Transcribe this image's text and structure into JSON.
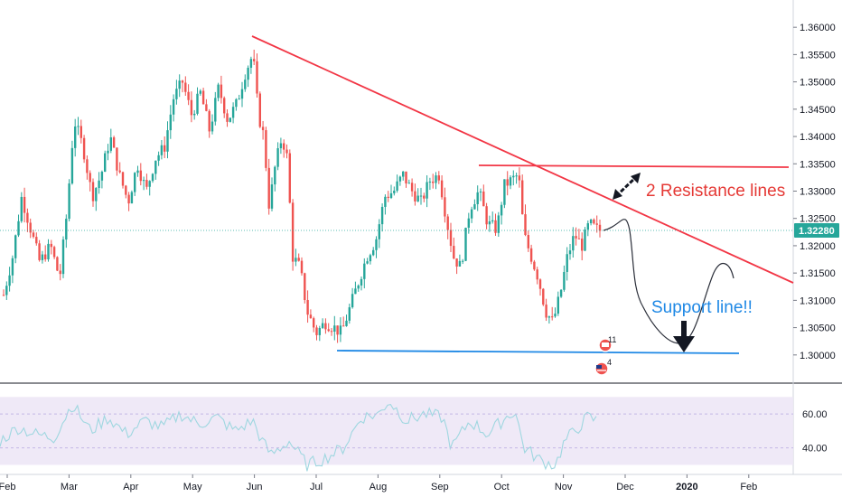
{
  "chart_data": {
    "type": "candlestick",
    "symbol_price_axis": {
      "ticks": [
        "1.36000",
        "1.35500",
        "1.35000",
        "1.34500",
        "1.34000",
        "1.33500",
        "1.33000",
        "1.32500",
        "1.32000",
        "1.31500",
        "1.31000",
        "1.30500",
        "1.30000"
      ],
      "range": [
        1.2955,
        1.364
      ],
      "last_price": "1.32280",
      "last_price_value": 1.3228
    },
    "time_axis": {
      "ticks": [
        "Feb",
        "Mar",
        "Apr",
        "May",
        "Jun",
        "Jul",
        "Aug",
        "Sep",
        "Oct",
        "Nov",
        "Dec",
        "2020",
        "Feb"
      ],
      "bold_tick": "2020"
    },
    "series": [
      {
        "name": "price",
        "ohlc_sample": [
          {
            "month": "Feb",
            "low": 1.3075,
            "high": 1.324
          },
          {
            "month": "Mar",
            "low": 1.312,
            "high": 1.346
          },
          {
            "month": "Apr",
            "low": 1.303,
            "high": 1.346
          },
          {
            "month": "May",
            "low": 1.326,
            "high": 1.3555
          },
          {
            "month": "Jun",
            "low": 1.324,
            "high": 1.357
          },
          {
            "month": "Jul",
            "low": 1.3015,
            "high": 1.318
          },
          {
            "month": "Aug",
            "low": 1.307,
            "high": 1.335
          },
          {
            "month": "Sep",
            "low": 1.314,
            "high": 1.338
          },
          {
            "month": "Oct",
            "low": 1.31,
            "high": 1.335
          },
          {
            "month": "Nov",
            "low": 1.3045,
            "high": 1.327
          }
        ]
      }
    ],
    "rsi_panel": {
      "ticks": [
        "60.00",
        "40.00"
      ],
      "range": [
        26,
        76
      ],
      "band": [
        30,
        70
      ]
    },
    "annotations": {
      "resistance_label": "2 Resistance lines",
      "support_label": "Support line!!",
      "badge_top": "11",
      "badge_bottom": "4"
    },
    "colors": {
      "up": "#26a69a",
      "down": "#ef5350",
      "trendline": "#f23645",
      "support": "#1e88e5",
      "rsi_line": "#7e57c2",
      "rsi_band": "#ede7f6",
      "last_price_tag": "#26a69a"
    }
  }
}
